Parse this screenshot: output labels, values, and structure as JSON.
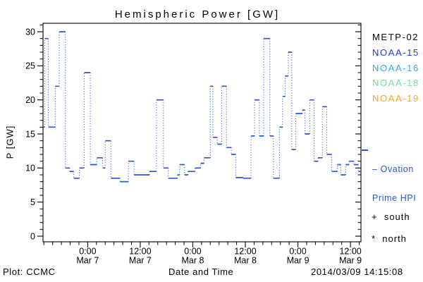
{
  "title": "Hemispheric Power [GW]",
  "y_axis_label": "P [GW]",
  "legend_satellites": [
    {
      "label": "METP-02",
      "color": "#000000"
    },
    {
      "label": "NOAA-15",
      "color": "#1f38d8"
    },
    {
      "label": "NOAA-16",
      "color": "#2fa9ee"
    },
    {
      "label": "NOAA-18",
      "color": "#73e096"
    },
    {
      "label": "NOAA-19",
      "color": "#ffa524"
    }
  ],
  "series_legend": {
    "line1": "– Ovation",
    "line2": "Prime HPI",
    "color": "#2c55d2"
  },
  "markers": {
    "south": "+  south",
    "north": "*  north"
  },
  "footer": {
    "left": "Plot: CCMC",
    "center": "Date and Time",
    "right": "2014/03/09 14:15:08"
  },
  "chart_data": {
    "type": "line",
    "subtype": "step (solid horizontal caps, dotted vertical risers)",
    "title": "Hemispheric Power [GW]",
    "xlabel": "Date and Time",
    "ylabel": "P [GW]",
    "ylim": [
      0,
      30
    ],
    "y_ticks": [
      0,
      5,
      10,
      15,
      20,
      25,
      30
    ],
    "y_minor_step": 1,
    "x_unit": "hours since 2014-03-06 00:00 UT",
    "x_range_hours": [
      13.8,
      86.4
    ],
    "x_minor_step_hours": 2,
    "x_ticks": [
      {
        "t": 24,
        "time": "0:00",
        "date": "Mar 7"
      },
      {
        "t": 36,
        "time": "12:00",
        "date": "Mar 7"
      },
      {
        "t": 48,
        "time": "0:00",
        "date": "Mar 8"
      },
      {
        "t": 60,
        "time": "12:00",
        "date": "Mar 8"
      },
      {
        "t": 72,
        "time": "0:00",
        "date": "Mar 9"
      },
      {
        "t": 84,
        "time": "12:00",
        "date": "Mar 9"
      }
    ],
    "legend_position": "right",
    "grid": false,
    "series": [
      {
        "name": "Ovation Prime HPI",
        "color": "#2c55d2",
        "points_t_hours_value_GW": [
          [
            13.8,
            16
          ],
          [
            14.2,
            29
          ],
          [
            15.0,
            16
          ],
          [
            16.6,
            22
          ],
          [
            17.5,
            30
          ],
          [
            18.9,
            10
          ],
          [
            19.9,
            9.5
          ],
          [
            20.8,
            8.5
          ],
          [
            22.1,
            10
          ],
          [
            23.2,
            24
          ],
          [
            24.6,
            10.5
          ],
          [
            26.1,
            11.5
          ],
          [
            27.4,
            10
          ],
          [
            28.0,
            14
          ],
          [
            29.3,
            8.5
          ],
          [
            31.4,
            8
          ],
          [
            33.3,
            11
          ],
          [
            34.6,
            9
          ],
          [
            38.1,
            9.5
          ],
          [
            39.7,
            20
          ],
          [
            41.3,
            10
          ],
          [
            42.4,
            8.5
          ],
          [
            44.5,
            9
          ],
          [
            45.0,
            10.5
          ],
          [
            46.1,
            9
          ],
          [
            46.9,
            9.5
          ],
          [
            48.5,
            10
          ],
          [
            49.8,
            10.7
          ],
          [
            50.6,
            11.5
          ],
          [
            52.0,
            22
          ],
          [
            52.6,
            14.5
          ],
          [
            53.6,
            13.5
          ],
          [
            54.6,
            22
          ],
          [
            55.7,
            13
          ],
          [
            56.8,
            12
          ],
          [
            57.8,
            8.6
          ],
          [
            59.5,
            8.5
          ],
          [
            61.3,
            14.7
          ],
          [
            62.1,
            20
          ],
          [
            63.2,
            14.7
          ],
          [
            64.2,
            29
          ],
          [
            65.6,
            14.7
          ],
          [
            66.4,
            8.5
          ],
          [
            67.8,
            16
          ],
          [
            68.5,
            20.5
          ],
          [
            69.1,
            23.5
          ],
          [
            69.8,
            27
          ],
          [
            70.6,
            12.7
          ],
          [
            71.5,
            18
          ],
          [
            73.0,
            18.5
          ],
          [
            73.6,
            15
          ],
          [
            74.7,
            20
          ],
          [
            75.7,
            11
          ],
          [
            76.6,
            11.5
          ],
          [
            77.6,
            19
          ],
          [
            78.6,
            12
          ],
          [
            79.7,
            9.5
          ],
          [
            81.0,
            10.5
          ],
          [
            81.8,
            9
          ],
          [
            82.9,
            10.5
          ],
          [
            83.7,
            11
          ],
          [
            84.8,
            10.5
          ],
          [
            85.8,
            9.5
          ]
        ]
      }
    ]
  }
}
